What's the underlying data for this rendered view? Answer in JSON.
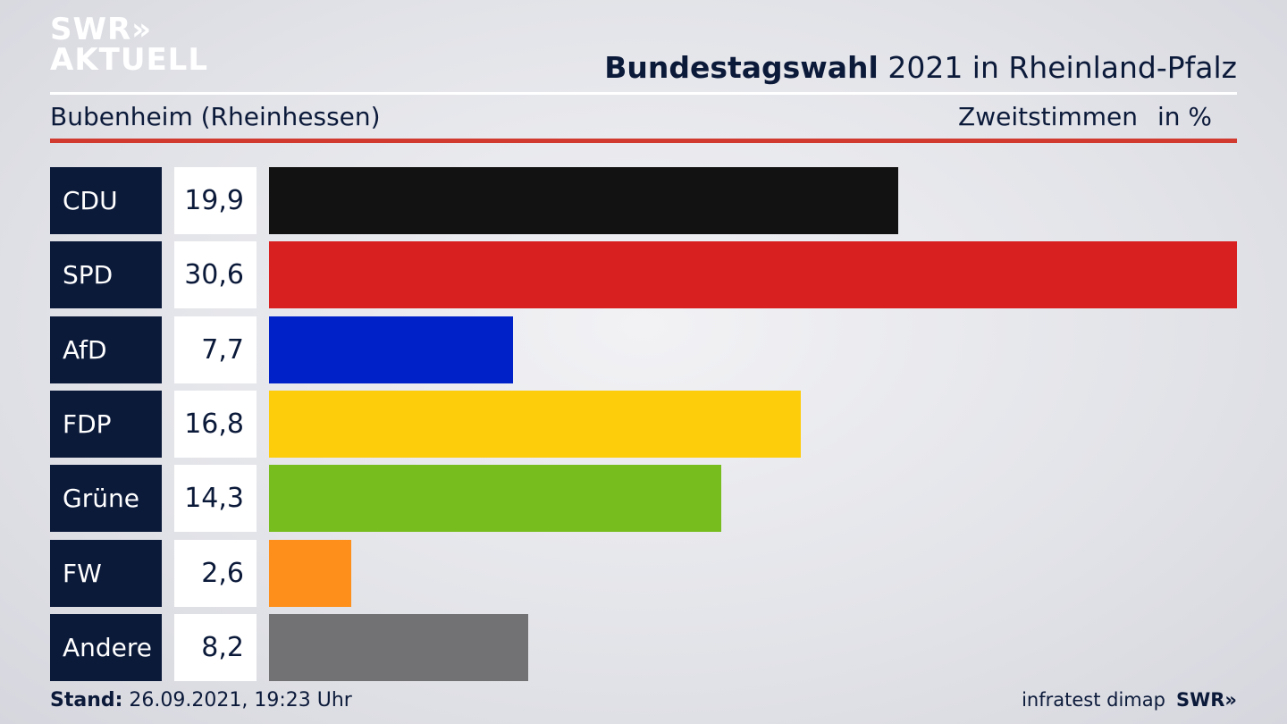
{
  "brand": {
    "logo_line1": "SWR»",
    "logo_line2": "AKTUELL"
  },
  "header": {
    "title_bold": "Bundestagswahl",
    "title_rest": " 2021 in Rheinland-Pfalz",
    "location": "Bubenheim (Rheinhessen)",
    "metric": "Zweitstimmen",
    "unit": "in %"
  },
  "chart_data": {
    "type": "bar",
    "orientation": "horizontal",
    "categories": [
      "CDU",
      "SPD",
      "AfD",
      "FDP",
      "Grüne",
      "FW",
      "Andere"
    ],
    "values": [
      19.9,
      30.6,
      7.7,
      16.8,
      14.3,
      2.6,
      8.2
    ],
    "value_labels": [
      "19,9",
      "30,6",
      "7,7",
      "16,8",
      "14,3",
      "2,6",
      "8,2"
    ],
    "colors": [
      "#121212",
      "#d82020",
      "#0021c8",
      "#fdcc0a",
      "#77bd1e",
      "#fd8f1a",
      "#727274"
    ],
    "xlim": [
      0,
      30.6
    ]
  },
  "footer": {
    "stand_label": "Stand:",
    "stand_value": " 26.09.2021, 19:23 Uhr",
    "source": "infratest dimap",
    "brand": "SWR»"
  }
}
